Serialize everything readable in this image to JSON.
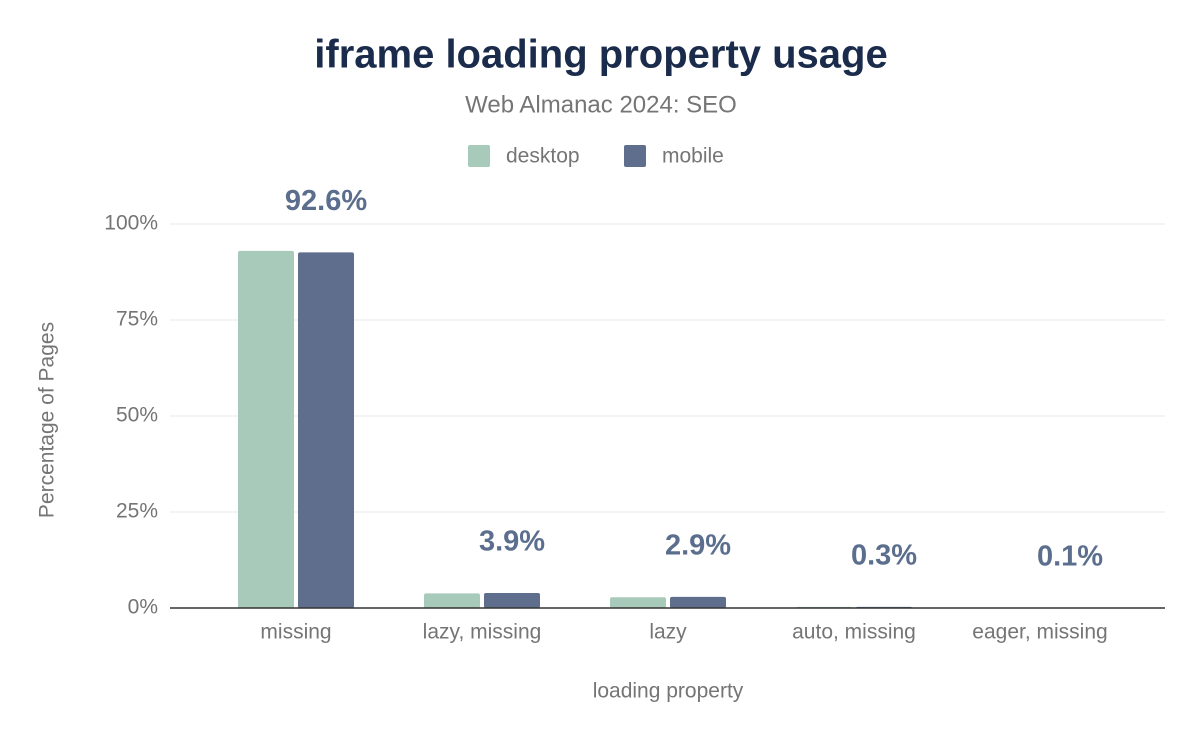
{
  "chart_data": {
    "type": "bar",
    "title": "iframe loading property usage",
    "subtitle": "Web Almanac 2024: SEO",
    "x_label": "loading property",
    "y_label": "Percentage of Pages",
    "categories": [
      "missing",
      "lazy, missing",
      "lazy",
      "auto, missing",
      "eager, missing"
    ],
    "series": [
      {
        "name": "desktop",
        "color": "#a8cabb",
        "values": [
          93.0,
          3.8,
          2.8,
          0.3,
          0.1
        ]
      },
      {
        "name": "mobile",
        "color": "#5f6e8c",
        "values": [
          92.6,
          3.9,
          2.9,
          0.3,
          0.1
        ],
        "value_labels": [
          "92.6%",
          "3.9%",
          "2.9%",
          "0.3%",
          "0.1%"
        ]
      }
    ],
    "ylim": [
      0,
      100
    ],
    "yticks": [
      {
        "value": 0,
        "label": "0%"
      },
      {
        "value": 25,
        "label": "25%"
      },
      {
        "value": 50,
        "label": "50%"
      },
      {
        "value": 75,
        "label": "75%"
      },
      {
        "value": 100,
        "label": "100%"
      }
    ],
    "grid": true
  }
}
